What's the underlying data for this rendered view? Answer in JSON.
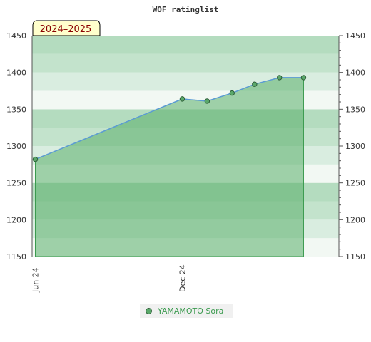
{
  "chart_data": {
    "type": "area",
    "title": "WOF ratinglist",
    "season_label": "2024–2025",
    "x_tick_labels": [
      {
        "date": "2024-06-01",
        "label": "Jun 24"
      },
      {
        "date": "2024-12-01",
        "label": "Dec 24"
      }
    ],
    "x_range": [
      "2024-05-28",
      "2025-06-14"
    ],
    "ylim": [
      1150,
      1450
    ],
    "y_ticks": [
      1150,
      1200,
      1250,
      1300,
      1350,
      1400,
      1450
    ],
    "series": [
      {
        "name": "YAMAMOTO Sora",
        "color": "#5b9bd5",
        "fill": "#5aaf6a",
        "points": [
          {
            "x": "2024-06-01",
            "y": 1282
          },
          {
            "x": "2024-12-01",
            "y": 1364
          },
          {
            "x": "2025-01-01",
            "y": 1361
          },
          {
            "x": "2025-02-01",
            "y": 1372
          },
          {
            "x": "2025-03-01",
            "y": 1384
          },
          {
            "x": "2025-04-01",
            "y": 1393
          },
          {
            "x": "2025-05-01",
            "y": 1393
          }
        ]
      }
    ],
    "legend_position": "bottom-center",
    "grid": false
  }
}
